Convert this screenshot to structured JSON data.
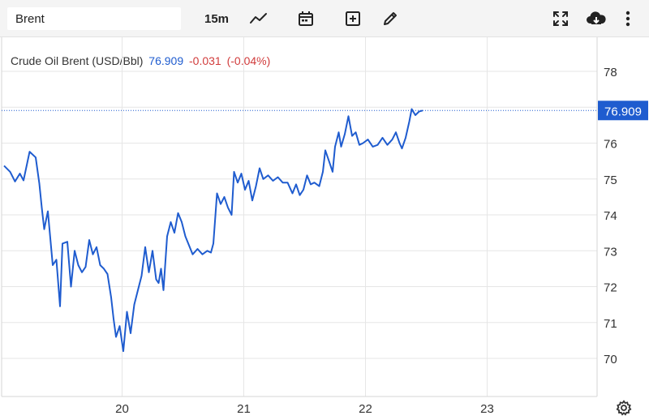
{
  "toolbar": {
    "symbol_value": "Brent",
    "interval_label": "15m",
    "icons": [
      "chart-type-line-icon",
      "calendar-icon",
      "add-indicator-icon",
      "draw-pencil-icon",
      "fullscreen-icon",
      "download-cloud-icon",
      "more-vertical-icon"
    ]
  },
  "legend": {
    "name": "Crude Oil Brent (USD/Bbl)",
    "price": "76.909",
    "change": "-0.031",
    "change_pct": "(-0.04%)"
  },
  "colors": {
    "line": "#1f5ccf",
    "price_tag": "#1f5ccf",
    "down": "#d13c3c",
    "grid": "#e6e6e6",
    "axis_text": "#333333"
  },
  "chart_data": {
    "type": "line",
    "title": "",
    "xlabel": "",
    "ylabel": "",
    "x_ticks": [
      {
        "label": "20",
        "x": 20.0
      },
      {
        "label": "21",
        "x": 21.0
      },
      {
        "label": "22",
        "x": 22.0
      },
      {
        "label": "23",
        "x": 23.0
      }
    ],
    "y_ticks": [
      70,
      71,
      72,
      73,
      74,
      75,
      76,
      77,
      78
    ],
    "y_tick_labels": [
      "70",
      "71",
      "72",
      "73",
      "74",
      "75",
      "76",
      "",
      "78"
    ],
    "xlim": [
      19.03,
      23.85
    ],
    "ylim": [
      69.0,
      79.0
    ],
    "last_price": 76.909,
    "last_price_label": "76.909",
    "grid": true,
    "series": [
      {
        "values": [
          [
            19.03,
            75.37
          ],
          [
            19.08,
            75.2
          ],
          [
            19.12,
            74.93
          ],
          [
            19.16,
            75.15
          ],
          [
            19.19,
            74.96
          ],
          [
            19.24,
            75.76
          ],
          [
            19.29,
            75.6
          ],
          [
            19.32,
            74.87
          ],
          [
            19.34,
            74.2
          ],
          [
            19.36,
            73.6
          ],
          [
            19.39,
            74.1
          ],
          [
            19.43,
            72.6
          ],
          [
            19.46,
            72.75
          ],
          [
            19.49,
            71.45
          ],
          [
            19.51,
            73.2
          ],
          [
            19.55,
            73.25
          ],
          [
            19.58,
            72.0
          ],
          [
            19.61,
            73.0
          ],
          [
            19.64,
            72.6
          ],
          [
            19.67,
            72.4
          ],
          [
            19.7,
            72.55
          ],
          [
            19.73,
            73.3
          ],
          [
            19.76,
            72.9
          ],
          [
            19.79,
            73.1
          ],
          [
            19.82,
            72.6
          ],
          [
            19.85,
            72.5
          ],
          [
            19.88,
            72.35
          ],
          [
            19.91,
            71.7
          ],
          [
            19.93,
            71.1
          ],
          [
            19.95,
            70.6
          ],
          [
            19.98,
            70.9
          ],
          [
            20.01,
            70.2
          ],
          [
            20.04,
            71.3
          ],
          [
            20.07,
            70.7
          ],
          [
            20.1,
            71.5
          ],
          [
            20.13,
            71.9
          ],
          [
            20.16,
            72.3
          ],
          [
            20.19,
            73.1
          ],
          [
            20.22,
            72.4
          ],
          [
            20.25,
            73.0
          ],
          [
            20.28,
            72.2
          ],
          [
            20.3,
            72.1
          ],
          [
            20.32,
            72.5
          ],
          [
            20.34,
            71.9
          ],
          [
            20.37,
            73.4
          ],
          [
            20.4,
            73.8
          ],
          [
            20.43,
            73.5
          ],
          [
            20.46,
            74.05
          ],
          [
            20.49,
            73.8
          ],
          [
            20.52,
            73.4
          ],
          [
            20.55,
            73.15
          ],
          [
            20.58,
            72.9
          ],
          [
            20.62,
            73.05
          ],
          [
            20.66,
            72.9
          ],
          [
            20.7,
            73.0
          ],
          [
            20.73,
            72.95
          ],
          [
            20.75,
            73.2
          ],
          [
            20.78,
            74.6
          ],
          [
            20.81,
            74.3
          ],
          [
            20.84,
            74.5
          ],
          [
            20.87,
            74.2
          ],
          [
            20.9,
            74.0
          ],
          [
            20.92,
            75.2
          ],
          [
            20.95,
            74.9
          ],
          [
            20.98,
            75.15
          ],
          [
            21.01,
            74.7
          ],
          [
            21.04,
            74.95
          ],
          [
            21.07,
            74.4
          ],
          [
            21.1,
            74.8
          ],
          [
            21.13,
            75.3
          ],
          [
            21.16,
            75.0
          ],
          [
            21.2,
            75.1
          ],
          [
            21.24,
            74.95
          ],
          [
            21.28,
            75.05
          ],
          [
            21.32,
            74.9
          ],
          [
            21.36,
            74.9
          ],
          [
            21.4,
            74.6
          ],
          [
            21.43,
            74.85
          ],
          [
            21.46,
            74.55
          ],
          [
            21.49,
            74.7
          ],
          [
            21.52,
            75.1
          ],
          [
            21.55,
            74.85
          ],
          [
            21.58,
            74.9
          ],
          [
            21.62,
            74.8
          ],
          [
            21.65,
            75.2
          ],
          [
            21.67,
            75.8
          ],
          [
            21.7,
            75.5
          ],
          [
            21.73,
            75.2
          ],
          [
            21.75,
            75.9
          ],
          [
            21.78,
            76.3
          ],
          [
            21.8,
            75.9
          ],
          [
            21.83,
            76.25
          ],
          [
            21.86,
            76.75
          ],
          [
            21.89,
            76.2
          ],
          [
            21.92,
            76.3
          ],
          [
            21.95,
            75.95
          ],
          [
            21.98,
            76.0
          ],
          [
            22.02,
            76.1
          ],
          [
            22.06,
            75.9
          ],
          [
            22.1,
            75.95
          ],
          [
            22.14,
            76.15
          ],
          [
            22.18,
            75.95
          ],
          [
            22.22,
            76.1
          ],
          [
            22.25,
            76.3
          ],
          [
            22.28,
            76.0
          ],
          [
            22.3,
            75.85
          ],
          [
            22.33,
            76.15
          ],
          [
            22.36,
            76.6
          ],
          [
            22.38,
            76.95
          ],
          [
            22.41,
            76.78
          ],
          [
            22.44,
            76.88
          ],
          [
            22.47,
            76.909
          ]
        ]
      }
    ]
  }
}
